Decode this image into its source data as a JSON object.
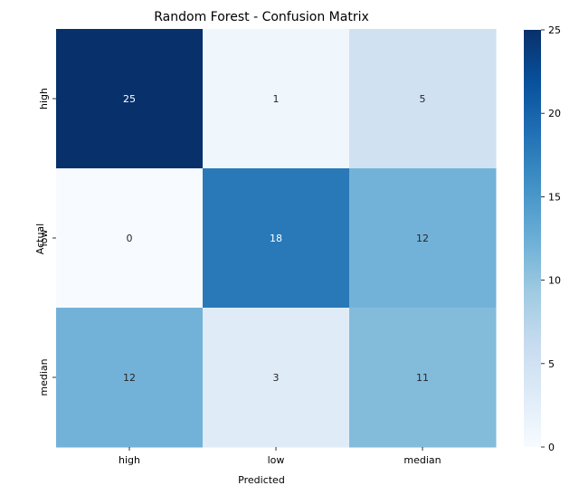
{
  "chart_data": {
    "type": "heatmap",
    "title": "Random Forest - Confusion Matrix",
    "xlabel": "Predicted",
    "ylabel": "Actual",
    "x_categories": [
      "high",
      "low",
      "median"
    ],
    "y_categories": [
      "high",
      "low",
      "median"
    ],
    "values": [
      [
        25,
        1,
        5
      ],
      [
        0,
        18,
        12
      ],
      [
        12,
        3,
        11
      ]
    ],
    "colormap": "Blues",
    "color_range": [
      0,
      25
    ],
    "colorbar_ticks": [
      0,
      5,
      10,
      15,
      20,
      25
    ]
  }
}
